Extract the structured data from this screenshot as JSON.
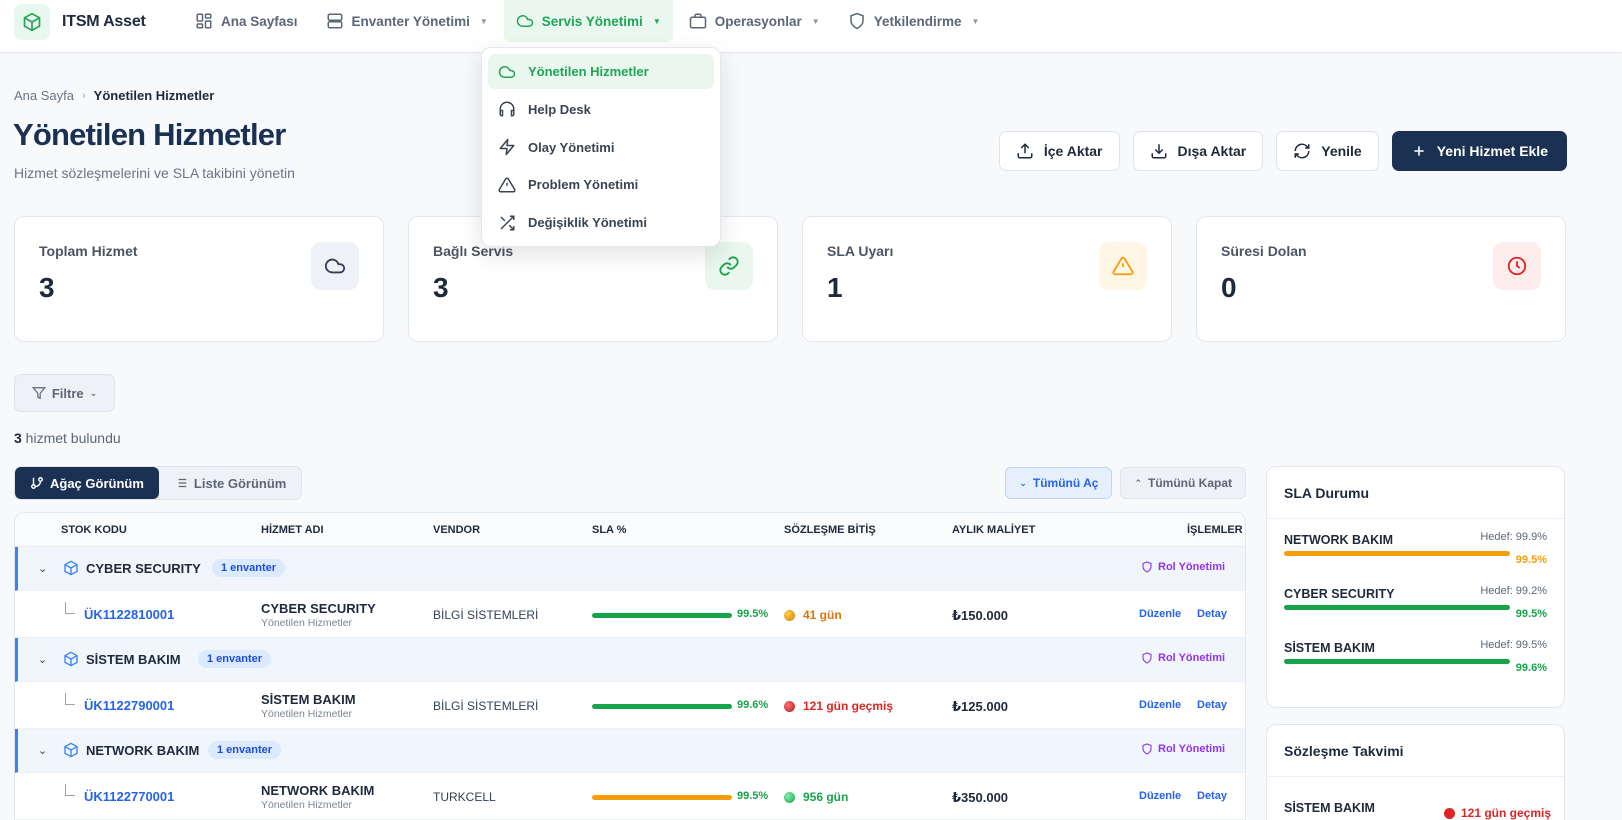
{
  "app": {
    "name": "ITSM Asset"
  },
  "nav": [
    {
      "label": "Ana Sayfası",
      "icon": "dashboard-icon",
      "caret": false
    },
    {
      "label": "Envanter Yönetimi",
      "icon": "server-icon",
      "caret": true
    },
    {
      "label": "Servis Yönetimi",
      "icon": "cloud-icon",
      "caret": true,
      "active": true
    },
    {
      "label": "Operasyonlar",
      "icon": "briefcase-icon",
      "caret": true
    },
    {
      "label": "Yetkilendirme",
      "icon": "shield-icon",
      "caret": true
    }
  ],
  "dropdown": [
    {
      "label": "Yönetilen Hizmetler",
      "icon": "cloud-icon",
      "active": true
    },
    {
      "label": "Help Desk",
      "icon": "headset-icon"
    },
    {
      "label": "Olay Yönetimi",
      "icon": "lightning-icon"
    },
    {
      "label": "Problem Yönetimi",
      "icon": "warning-icon"
    },
    {
      "label": "Değişiklik Yönetimi",
      "icon": "shuffle-icon"
    }
  ],
  "breadcrumb": {
    "home": "Ana Sayfa",
    "separator": "›",
    "current": "Yönetilen Hizmetler"
  },
  "page": {
    "title": "Yönetilen Hizmetler",
    "subtitle": "Hizmet sözleşmelerini ve SLA takibini yönetin"
  },
  "actions": {
    "import": "İçe Aktar",
    "export": "Dışa Aktar",
    "refresh": "Yenile",
    "add": "Yeni Hizmet Ekle"
  },
  "stats": [
    {
      "label": "Toplam Hizmet",
      "value": "3",
      "icon": "cloud-icon",
      "color": "#334155",
      "bg": "#eef1f5"
    },
    {
      "label": "Bağlı Servis",
      "value": "3",
      "icon": "link-icon",
      "color": "#16a34a",
      "bg": "#eaf7ee"
    },
    {
      "label": "SLA Uyarı",
      "value": "1",
      "icon": "warning-icon",
      "color": "#f59e0b",
      "bg": "#fef5e4"
    },
    {
      "label": "Süresi Dolan",
      "value": "0",
      "icon": "clock-icon",
      "color": "#dc2626",
      "bg": "#fdecec"
    }
  ],
  "filter": {
    "label": "Filtre"
  },
  "results": {
    "count": "3",
    "suffix": " hizmet bulundu"
  },
  "views": {
    "tree": "Ağaç Görünüm",
    "list": "Liste Görünüm"
  },
  "tree_controls": {
    "expand": "Tümünü Aç",
    "collapse": "Tümünü Kapat"
  },
  "table": {
    "headers": {
      "code": "STOK KODU",
      "name": "HİZMET ADI",
      "vendor": "VENDOR",
      "sla": "SLA %",
      "end": "SÖZLEŞME BİTİŞ",
      "cost": "AYLIK MALİYET",
      "ops": "İŞLEMLER"
    },
    "groups": [
      {
        "name": "CYBER SECURITY",
        "badge": "1 envanter",
        "role": "Rol Yönetimi",
        "row": {
          "code": "ÜK1122810001",
          "name": "CYBER SECURITY",
          "category": "Yönetilen Hizmetler",
          "vendor": "BİLGİ SİSTEMLERİ",
          "sla": "99.5%",
          "sla_color": "#16a34a",
          "end": "41 gün",
          "end_color": "#d97706",
          "cost": "₺150.000",
          "edit": "Düzenle",
          "detail": "Detay"
        }
      },
      {
        "name": "SİSTEM BAKIM",
        "badge": "1 envanter",
        "role": "Rol Yönetimi",
        "row": {
          "code": "ÜK1122790001",
          "name": "SİSTEM BAKIM",
          "category": "Yönetilen Hizmetler",
          "vendor": "BİLGİ SİSTEMLERİ",
          "sla": "99.6%",
          "sla_color": "#16a34a",
          "end": "121 gün geçmiş",
          "end_color": "#dc2626",
          "cost": "₺125.000",
          "edit": "Düzenle",
          "detail": "Detay"
        }
      },
      {
        "name": "NETWORK BAKIM",
        "badge": "1 envanter",
        "role": "Rol Yönetimi",
        "row": {
          "code": "ÜK1122770001",
          "name": "NETWORK BAKIM",
          "category": "Yönetilen Hizmetler",
          "vendor": "TURKCELL",
          "sla": "99.5%",
          "sla_color": "#f59e0b",
          "end": "956 gün",
          "end_color": "#16a34a",
          "cost": "₺350.000",
          "edit": "Düzenle",
          "detail": "Detay"
        }
      }
    ]
  },
  "sla_panel": {
    "title": "SLA Durumu",
    "items": [
      {
        "name": "NETWORK BAKIM",
        "target": "Hedef: 99.9%",
        "value": "99.5%",
        "color": "#f59e0b"
      },
      {
        "name": "CYBER SECURITY",
        "target": "Hedef: 99.2%",
        "value": "99.5%",
        "color": "#16a34a"
      },
      {
        "name": "SİSTEM BAKIM",
        "target": "Hedef: 99.5%",
        "value": "99.6%",
        "color": "#16a34a"
      }
    ]
  },
  "contract_panel": {
    "title": "Sözleşme Takvimi",
    "items": [
      {
        "name": "SİSTEM BAKIM",
        "value": "121 gün geçmiş"
      }
    ]
  }
}
